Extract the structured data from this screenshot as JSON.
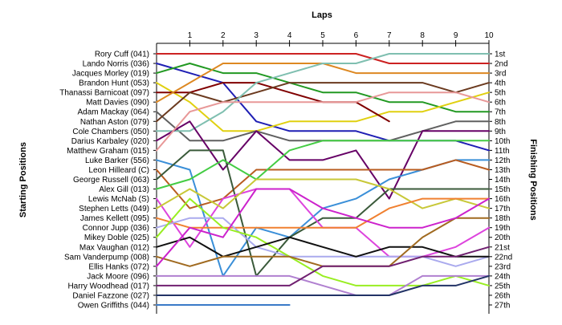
{
  "chart_data": {
    "type": "line",
    "title": "Laps",
    "ylabel_left": "Starting Positions",
    "ylabel_right": "Finishing Positions",
    "x_ticks": [
      1,
      2,
      3,
      4,
      5,
      6,
      7,
      8,
      9,
      10
    ],
    "xlim": [
      0,
      10
    ],
    "ylim": [
      1,
      27
    ],
    "starting_order": [
      "Rory Cuff (041)",
      "Lando Norris (036)",
      "Jacques Morley (019)",
      "Brandon Hunt (053)",
      "Thanassi Barnicoat (097)",
      "Matt Davies (090)",
      "Adam Mackay (064)",
      "Nathan Aston (079)",
      "Cole Chambers (050)",
      "Darius Karbaley (020)",
      "Matthew Graham (015)",
      "Luke Barker (556)",
      "Leon Hilleard (C)",
      "George Russell (063)",
      "Alex Gill (013)",
      "Lewis McNab (S)",
      "Stephen Letts (049)",
      "James Kellett (095)",
      "Connor Jupp (036)",
      "Mikey Doble (025)",
      "Max Vaughan (012)",
      "Sam Vanderpump (008)",
      "Ellis Hanks (072)",
      "Jack Moore (096)",
      "Harry Woodhead (017)",
      "Daniel Fazzone (027)",
      "Owen Griffiths (044)"
    ],
    "finishing_labels": [
      "1st",
      "2nd",
      "3rd",
      "4th",
      "5th",
      "6th",
      "7th",
      "8th",
      "9th",
      "10th",
      "11th",
      "12th",
      "13th",
      "14th",
      "15th",
      "16th",
      "17th",
      "18th",
      "19th",
      "20th",
      "21st",
      "22nd",
      "23rd",
      "24th",
      "25th",
      "26th",
      "27th"
    ],
    "series": [
      {
        "start": 1,
        "color": "#cc2222",
        "positions": [
          1,
          1,
          1,
          1,
          1,
          1,
          2,
          2,
          2,
          2
        ]
      },
      {
        "start": 2,
        "color": "#1f1fb4",
        "positions": [
          3,
          4,
          8,
          9,
          9,
          9,
          10,
          10,
          10,
          11
        ]
      },
      {
        "start": 3,
        "color": "#229922",
        "positions": [
          2,
          3,
          3,
          4,
          5,
          5,
          6,
          6,
          7,
          7
        ]
      },
      {
        "start": 4,
        "color": "#e0d010",
        "positions": [
          6,
          9,
          9,
          8,
          8,
          8,
          7,
          7,
          6,
          5
        ]
      },
      {
        "start": 5,
        "color": "#800000",
        "positions": [
          5,
          4,
          4,
          5,
          6,
          6,
          8,
          null,
          null,
          null
        ]
      },
      {
        "start": 6,
        "color": "#dd8822",
        "positions": [
          4,
          2,
          2,
          2,
          2,
          3,
          3,
          3,
          3,
          3
        ]
      },
      {
        "start": 7,
        "color": "#606060",
        "positions": [
          10,
          10,
          9,
          10,
          10,
          10,
          10,
          9,
          8,
          8
        ]
      },
      {
        "start": 8,
        "color": "#6b3a1f",
        "positions": [
          5,
          6,
          5,
          4,
          4,
          4,
          4,
          4,
          5,
          4
        ]
      },
      {
        "start": 9,
        "color": "#7fbfb0",
        "positions": [
          9,
          7,
          4,
          3,
          2,
          2,
          1,
          1,
          1,
          1
        ]
      },
      {
        "start": 10,
        "color": "#660066",
        "positions": [
          8,
          13,
          9,
          12,
          12,
          11,
          16,
          9,
          9,
          9
        ]
      },
      {
        "start": 11,
        "color": "#e89898",
        "positions": [
          7,
          6,
          6,
          6,
          6,
          6,
          5,
          5,
          5,
          6
        ]
      },
      {
        "start": 12,
        "color": "#3a8fd8",
        "positions": [
          13,
          24,
          19,
          20,
          17,
          16,
          14,
          13,
          12,
          12
        ]
      },
      {
        "start": 13,
        "color": "#b85c20",
        "positions": [
          17,
          16,
          13,
          13,
          13,
          13,
          13,
          13,
          12,
          13
        ]
      },
      {
        "start": 14,
        "color": "#3a5a3a",
        "positions": [
          11,
          11,
          24,
          20,
          18,
          18,
          15,
          15,
          15,
          15
        ]
      },
      {
        "start": 15,
        "color": "#44cc44",
        "positions": [
          14,
          12,
          14,
          11,
          10,
          10,
          10,
          10,
          10,
          10
        ]
      },
      {
        "start": 16,
        "color": "#dd44dd",
        "positions": [
          21,
          16,
          15,
          15,
          19,
          19,
          22,
          22,
          21,
          19
        ]
      },
      {
        "start": 17,
        "color": "#c8c838",
        "positions": [
          15,
          17,
          14,
          14,
          14,
          14,
          15,
          17,
          16,
          17
        ]
      },
      {
        "start": 18,
        "color": "#f08030",
        "positions": [
          19,
          19,
          19,
          19,
          19,
          19,
          17,
          16,
          16,
          16
        ]
      },
      {
        "start": 19,
        "color": "#aaaaee",
        "positions": [
          18,
          18,
          21,
          22,
          22,
          22,
          22,
          22,
          23,
          22
        ]
      },
      {
        "start": 20,
        "color": "#99ee22",
        "positions": [
          16,
          19,
          20,
          22,
          24,
          25,
          25,
          25,
          24,
          25
        ]
      },
      {
        "start": 21,
        "color": "#101010",
        "positions": [
          20,
          22,
          21,
          20,
          21,
          22,
          21,
          21,
          22,
          22
        ]
      },
      {
        "start": 22,
        "color": "#a06a20",
        "positions": [
          23,
          22,
          22,
          22,
          23,
          23,
          23,
          20,
          18,
          18
        ]
      },
      {
        "start": 23,
        "color": "#cc22cc",
        "positions": [
          19,
          20,
          15,
          15,
          17,
          18,
          19,
          19,
          18,
          16
        ]
      },
      {
        "start": 24,
        "color": "#b080d0",
        "positions": [
          24,
          24,
          24,
          24,
          25,
          26,
          26,
          24,
          24,
          24
        ]
      },
      {
        "start": 25,
        "color": "#702070",
        "positions": [
          25,
          25,
          25,
          25,
          23,
          23,
          23,
          22,
          22,
          21
        ]
      },
      {
        "start": 26,
        "color": "#223366",
        "positions": [
          26,
          26,
          26,
          26,
          26,
          26,
          26,
          25,
          25,
          24
        ]
      },
      {
        "start": 27,
        "color": "#3a7ac8",
        "positions": [
          27,
          27,
          27,
          27,
          null,
          null,
          null,
          null,
          null,
          null
        ]
      }
    ]
  }
}
